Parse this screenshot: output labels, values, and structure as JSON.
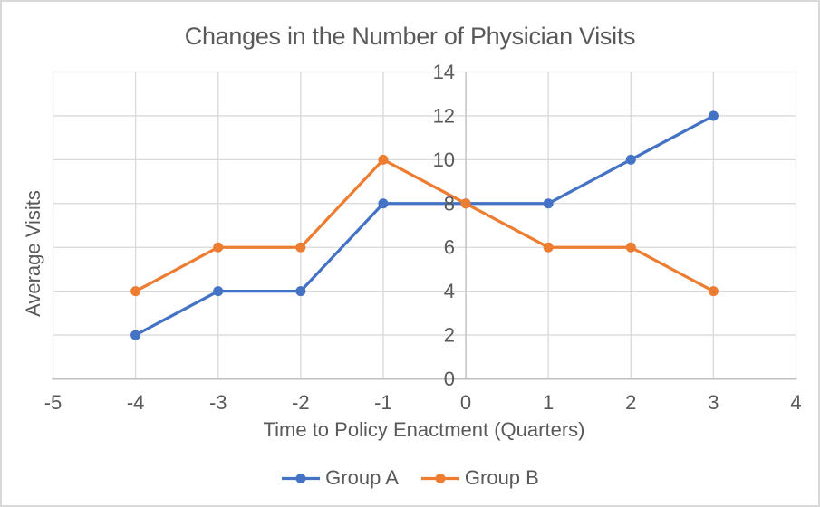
{
  "style": {
    "background": "#FFFFFF",
    "chart_border": "#D9D9D9",
    "gridline": "#D9D9D9",
    "axis_line": "#BFBFBF",
    "text": "#595959",
    "series_a_color": "#4472C4",
    "series_b_color": "#ED7D31"
  },
  "chart_data": {
    "type": "line",
    "title": "Changes in the Number of Physician Visits",
    "xlabel": "Time to Policy Enactment (Quarters)",
    "ylabel": "Average Visits",
    "x": [
      -4,
      -3,
      -2,
      -1,
      0,
      1,
      2,
      3
    ],
    "series": [
      {
        "name": "Group A",
        "color": "#4472C4",
        "values": [
          2,
          4,
          4,
          8,
          8,
          8,
          10,
          12
        ]
      },
      {
        "name": "Group B",
        "color": "#ED7D31",
        "values": [
          4,
          6,
          6,
          10,
          8,
          6,
          6,
          4
        ]
      }
    ],
    "xlim": [
      -5,
      4
    ],
    "ylim": [
      0,
      14
    ],
    "x_ticks": [
      -5,
      -4,
      -3,
      -2,
      -1,
      0,
      1,
      2,
      3,
      4
    ],
    "y_ticks": [
      0,
      2,
      4,
      6,
      8,
      10,
      12,
      14
    ],
    "grid": true,
    "marker": "circle",
    "legend_position": "bottom"
  }
}
